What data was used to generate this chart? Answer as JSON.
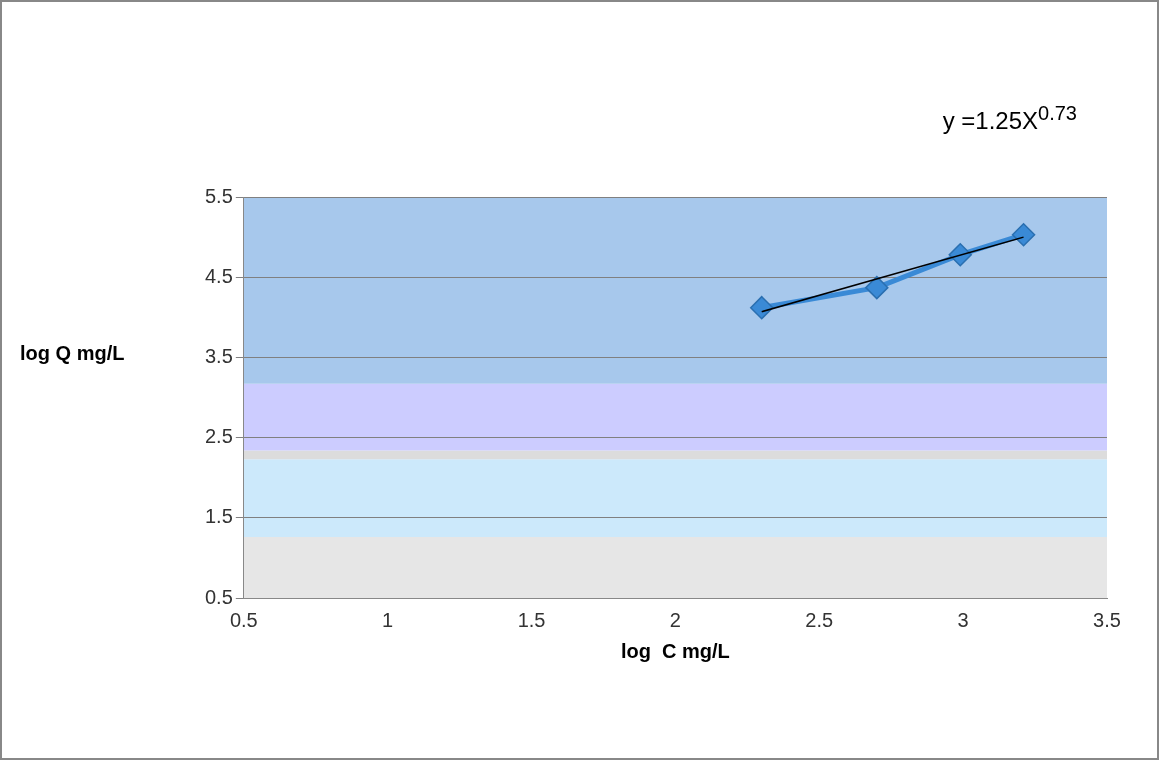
{
  "chart_data": {
    "type": "line",
    "xlabel": "log  C mg/L",
    "ylabel": "log  Q mg/L",
    "annotations": [
      "y =1.25X$^{0.73}$"
    ],
    "series": [
      {
        "type": "line",
        "color": "#3a8ad6",
        "x": [
          2.3,
          2.7,
          2.99,
          3.21
        ],
        "values": [
          4.12,
          4.37,
          4.78,
          5.03
        ],
        "marker": "diamond"
      },
      {
        "type": "line",
        "color": "#000000",
        "x": [
          2.3,
          3.21
        ],
        "values": [
          4.07,
          5.0
        ],
        "marker": "none"
      }
    ],
    "xlim": [
      0.5,
      3.5
    ],
    "xticks": [
      0.5,
      1,
      1.5,
      2,
      2.5,
      3,
      3.5
    ],
    "ylim": [
      0.5,
      5.5
    ],
    "yticks": [
      0.5,
      1.5,
      2.5,
      3.5,
      4.5,
      5.5
    ],
    "grid": "y",
    "legend": false,
    "bands": [
      {
        "axis": "y",
        "from": 0.5,
        "to": 1.26,
        "color": "#e6e6e6"
      },
      {
        "axis": "y",
        "from": 1.26,
        "to": 2.23,
        "color": "#cce9fb"
      },
      {
        "axis": "y",
        "from": 2.23,
        "to": 2.34,
        "color": "#dcdcdc"
      },
      {
        "axis": "y",
        "from": 2.34,
        "to": 3.17,
        "color": "#ccccff"
      },
      {
        "axis": "y",
        "from": 3.17,
        "to": 5.5,
        "color": "#a7c8ec"
      }
    ]
  }
}
